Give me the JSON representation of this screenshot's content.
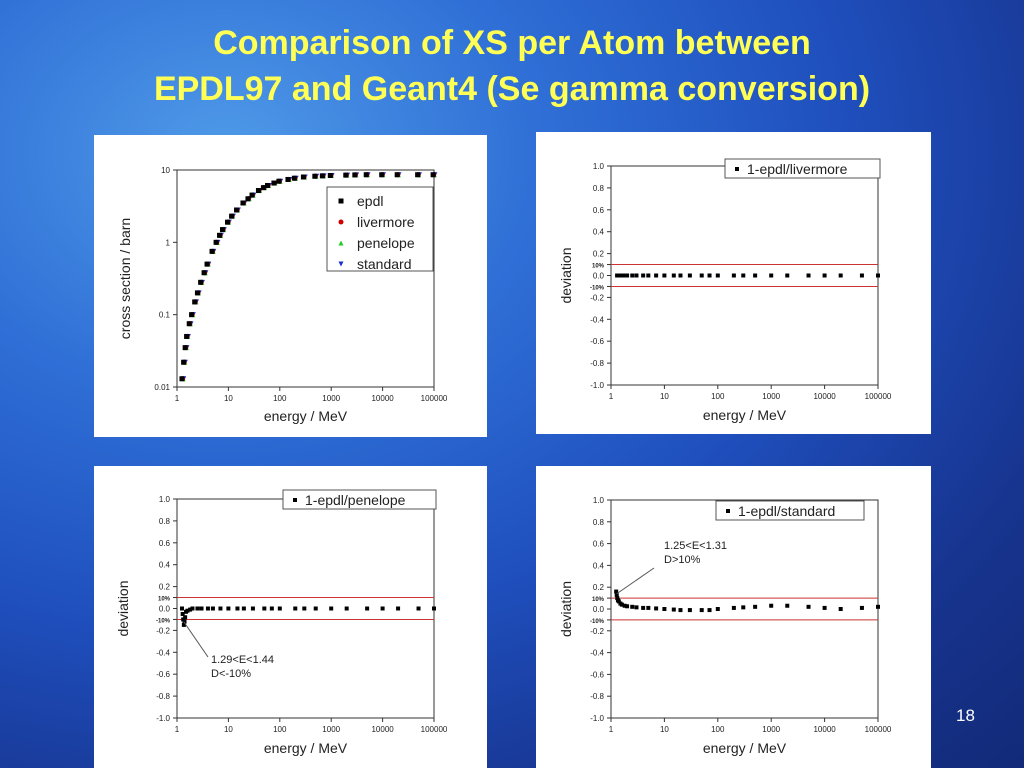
{
  "slide": {
    "title_line1": "Comparison of XS per Atom between",
    "title_line2": "EPDL97 and Geant4 (Se gamma conversion)",
    "page_number": "18"
  },
  "colors": {
    "title": "#ffff55",
    "epdl": "#000000",
    "livermore": "#cc0000",
    "penelope": "#22cc22",
    "standard": "#1a2fd0",
    "threshold_line": "#cc3333"
  },
  "chart_data": [
    {
      "type": "scatter",
      "xscale": "log",
      "yscale": "log",
      "xlabel": "energy / MeV",
      "ylabel": "cross section / barn",
      "xlim": [
        1,
        100000
      ],
      "ylim": [
        0.01,
        10
      ],
      "xticks": [
        "1",
        "10",
        "100",
        "1000",
        "10000",
        "100000"
      ],
      "yticks": [
        "0.01",
        "0.1",
        "1",
        "10"
      ],
      "legend_position": "right-middle",
      "series": [
        {
          "name": "epdl",
          "marker": "square",
          "color": "#000000"
        },
        {
          "name": "livermore",
          "marker": "circle",
          "color": "#cc0000"
        },
        {
          "name": "penelope",
          "marker": "triangle-up",
          "color": "#22cc22"
        },
        {
          "name": "standard",
          "marker": "triangle-down",
          "color": "#1a2fd0"
        }
      ],
      "x": [
        1.3,
        1.4,
        1.5,
        1.6,
        1.8,
        2,
        2.3,
        2.6,
        3,
        3.5,
        4,
        5,
        6,
        7,
        8,
        10,
        12,
        15,
        20,
        25,
        30,
        40,
        50,
        60,
        80,
        100,
        150,
        200,
        300,
        500,
        700,
        1000,
        2000,
        3000,
        5000,
        10000,
        20000,
        50000,
        100000
      ],
      "values": [
        0.013,
        0.022,
        0.035,
        0.05,
        0.075,
        0.1,
        0.15,
        0.2,
        0.28,
        0.38,
        0.5,
        0.75,
        1.0,
        1.25,
        1.5,
        1.9,
        2.3,
        2.8,
        3.5,
        4.0,
        4.5,
        5.2,
        5.7,
        6.1,
        6.6,
        7.0,
        7.4,
        7.7,
        8.0,
        8.2,
        8.3,
        8.4,
        8.5,
        8.55,
        8.6,
        8.6,
        8.6,
        8.6,
        8.6
      ]
    },
    {
      "type": "scatter",
      "xscale": "log",
      "xlabel": "energy / MeV",
      "ylabel": "deviation",
      "xlim": [
        1,
        100000
      ],
      "ylim": [
        -1.0,
        1.0
      ],
      "xticks": [
        "1",
        "10",
        "100",
        "1000",
        "10000",
        "100000"
      ],
      "yticks": [
        "1.0",
        "0.8",
        "0.6",
        "0.4",
        "0.2",
        "10%",
        "0.0",
        "-10%",
        "-0.2",
        "-0.4",
        "-0.6",
        "-0.8",
        "-1.0"
      ],
      "threshold_lines": [
        0.1,
        -0.1
      ],
      "legend_position": "top-right",
      "series": [
        {
          "name": "1-epdl/livermore",
          "marker": "square",
          "color": "#000000"
        }
      ],
      "x": [
        1.3,
        1.5,
        1.7,
        2,
        2.5,
        3,
        4,
        5,
        7,
        10,
        15,
        20,
        30,
        50,
        70,
        100,
        200,
        300,
        500,
        1000,
        2000,
        5000,
        10000,
        20000,
        50000,
        100000
      ],
      "values": [
        0,
        0,
        0,
        0,
        0,
        0,
        0,
        0,
        0,
        0,
        0,
        0,
        0,
        0,
        0,
        0,
        0,
        0,
        0,
        0,
        0,
        0,
        0,
        0,
        0,
        0
      ]
    },
    {
      "type": "scatter",
      "xscale": "log",
      "xlabel": "energy / MeV",
      "ylabel": "deviation",
      "xlim": [
        1,
        100000
      ],
      "ylim": [
        -1.0,
        1.0
      ],
      "xticks": [
        "1",
        "10",
        "100",
        "1000",
        "10000",
        "100000"
      ],
      "yticks": [
        "1.0",
        "0.8",
        "0.6",
        "0.4",
        "0.2",
        "10%",
        "0.0",
        "-10%",
        "-0.2",
        "-0.4",
        "-0.6",
        "-0.8",
        "-1.0"
      ],
      "threshold_lines": [
        0.1,
        -0.1
      ],
      "legend_position": "top-right",
      "annotation": {
        "line1": "1.29<E<1.44",
        "line2": "D<-10%",
        "target_x": 1.35,
        "target_y": -0.12
      },
      "series": [
        {
          "name": "1-epdl/penelope",
          "marker": "square",
          "color": "#000000"
        }
      ],
      "x": [
        1.25,
        1.29,
        1.32,
        1.36,
        1.4,
        1.44,
        1.5,
        1.6,
        1.8,
        2,
        2.5,
        3,
        4,
        5,
        7,
        10,
        15,
        20,
        30,
        50,
        70,
        100,
        200,
        300,
        500,
        1000,
        2000,
        5000,
        10000,
        20000,
        50000,
        100000
      ],
      "values": [
        0.0,
        -0.05,
        -0.1,
        -0.15,
        -0.12,
        -0.08,
        -0.03,
        -0.02,
        -0.01,
        0,
        0,
        0,
        0,
        0,
        0,
        0,
        0,
        0,
        0,
        0,
        0,
        0,
        0,
        0,
        0,
        0,
        0,
        0,
        0,
        0,
        0,
        0
      ]
    },
    {
      "type": "scatter",
      "xscale": "log",
      "xlabel": "energy / MeV",
      "ylabel": "deviation",
      "xlim": [
        1,
        100000
      ],
      "ylim": [
        -1.0,
        1.0
      ],
      "xticks": [
        "1",
        "10",
        "100",
        "1000",
        "10000",
        "100000"
      ],
      "yticks": [
        "1.0",
        "0.8",
        "0.6",
        "0.4",
        "0.2",
        "10%",
        "0.0",
        "-10%",
        "-0.2",
        "-0.4",
        "-0.6",
        "-0.8",
        "-1.0"
      ],
      "threshold_lines": [
        0.1,
        -0.1
      ],
      "legend_position": "top-right",
      "annotation": {
        "line1": "1.25<E<1.31",
        "line2": "D>10%",
        "target_x": 1.28,
        "target_y": 0.14
      },
      "series": [
        {
          "name": "1-epdl/standard",
          "marker": "square",
          "color": "#000000"
        }
      ],
      "x": [
        1.25,
        1.28,
        1.31,
        1.35,
        1.4,
        1.5,
        1.6,
        1.8,
        2,
        2.5,
        3,
        4,
        5,
        7,
        10,
        15,
        20,
        30,
        50,
        70,
        100,
        200,
        300,
        500,
        1000,
        2000,
        5000,
        10000,
        20000,
        50000,
        100000
      ],
      "values": [
        0.16,
        0.13,
        0.1,
        0.08,
        0.07,
        0.05,
        0.04,
        0.03,
        0.025,
        0.02,
        0.015,
        0.01,
        0.01,
        0.005,
        0.0,
        -0.005,
        -0.01,
        -0.01,
        -0.01,
        -0.01,
        0.0,
        0.01,
        0.015,
        0.02,
        0.03,
        0.03,
        0.02,
        0.01,
        0.0,
        0.01,
        0.02
      ]
    }
  ]
}
